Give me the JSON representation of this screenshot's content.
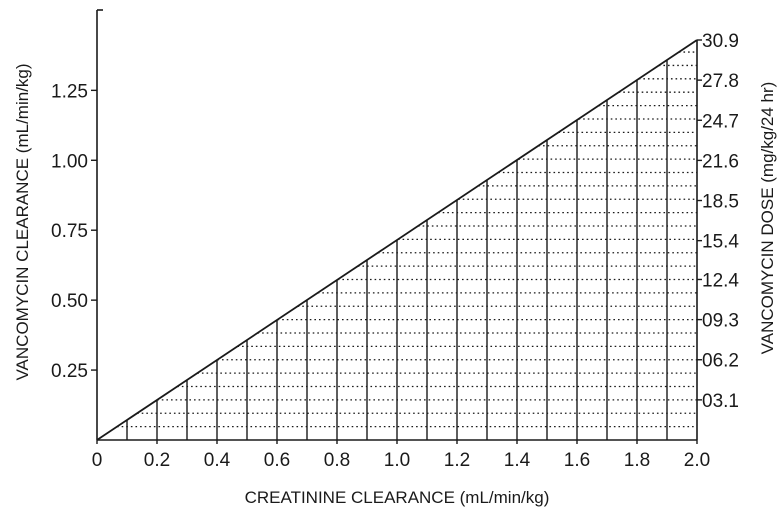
{
  "chart_data": {
    "type": "line",
    "title": "",
    "xlabel": "CREATININE CLEARANCE (mL/min/kg)",
    "ylabel": "VANCOMYCIN CLEARANCE (mL/min/kg)",
    "y2label": "VANCOMYCIN DOSE (mg/kg/24 hr)",
    "xlim": [
      0,
      2.0
    ],
    "ylim": [
      0,
      1.43
    ],
    "y2lim": [
      0,
      30.9
    ],
    "grid": "dotted horizontal and solid vertical grid lines under the line only",
    "x_tick_labels": [
      "0",
      "0.2",
      "0.4",
      "0.6",
      "0.8",
      "1.0",
      "1.2",
      "1.4",
      "1.6",
      "1.8",
      "2.0"
    ],
    "y_ticks": [
      {
        "value": 0.25,
        "label": "0.25"
      },
      {
        "value": 0.5,
        "label": "0.50"
      },
      {
        "value": 0.75,
        "label": "0.75"
      },
      {
        "value": 1.0,
        "label": "1.00"
      },
      {
        "value": 1.25,
        "label": "1.25"
      }
    ],
    "y2_ticks": [
      {
        "value": 3.1,
        "label": "03.1"
      },
      {
        "value": 6.2,
        "label": "06.2"
      },
      {
        "value": 9.3,
        "label": "09.3"
      },
      {
        "value": 12.4,
        "label": "12.4"
      },
      {
        "value": 15.4,
        "label": "15.4"
      },
      {
        "value": 18.5,
        "label": "18.5"
      },
      {
        "value": 21.6,
        "label": "21.6"
      },
      {
        "value": 24.7,
        "label": "24.7"
      },
      {
        "value": 27.8,
        "label": "27.8"
      },
      {
        "value": 30.9,
        "label": "30.9"
      }
    ],
    "series": [
      {
        "x": [
          0,
          2.0
        ],
        "y": [
          0,
          1.43
        ],
        "color": "#1a1a1a"
      }
    ]
  }
}
